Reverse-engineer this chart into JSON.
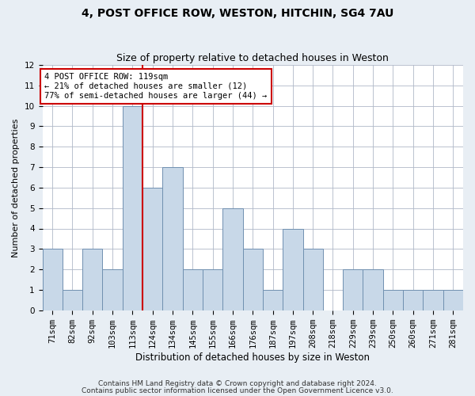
{
  "title1": "4, POST OFFICE ROW, WESTON, HITCHIN, SG4 7AU",
  "title2": "Size of property relative to detached houses in Weston",
  "xlabel": "Distribution of detached houses by size in Weston",
  "ylabel": "Number of detached properties",
  "categories": [
    "71sqm",
    "82sqm",
    "92sqm",
    "103sqm",
    "113sqm",
    "124sqm",
    "134sqm",
    "145sqm",
    "155sqm",
    "166sqm",
    "176sqm",
    "187sqm",
    "197sqm",
    "208sqm",
    "218sqm",
    "229sqm",
    "239sqm",
    "250sqm",
    "260sqm",
    "271sqm",
    "281sqm"
  ],
  "values": [
    3,
    1,
    3,
    2,
    10,
    6,
    7,
    2,
    2,
    5,
    3,
    1,
    4,
    3,
    0,
    2,
    2,
    1,
    1,
    1,
    1
  ],
  "bar_color": "#c8d8e8",
  "bar_edge_color": "#7090b0",
  "highlight_bar_index": 4,
  "highlight_line_color": "#cc0000",
  "annotation_text": "4 POST OFFICE ROW: 119sqm\n← 21% of detached houses are smaller (12)\n77% of semi-detached houses are larger (44) →",
  "annotation_box_color": "#ffffff",
  "annotation_box_edge_color": "#cc0000",
  "ylim": [
    0,
    12
  ],
  "yticks": [
    0,
    1,
    2,
    3,
    4,
    5,
    6,
    7,
    8,
    9,
    10,
    11,
    12
  ],
  "footer1": "Contains HM Land Registry data © Crown copyright and database right 2024.",
  "footer2": "Contains public sector information licensed under the Open Government Licence v3.0.",
  "bg_color": "#e8eef4",
  "plot_bg_color": "#ffffff",
  "title1_fontsize": 10,
  "title2_fontsize": 9,
  "xlabel_fontsize": 8.5,
  "ylabel_fontsize": 8,
  "tick_fontsize": 7.5,
  "annotation_fontsize": 7.5,
  "footer_fontsize": 6.5
}
